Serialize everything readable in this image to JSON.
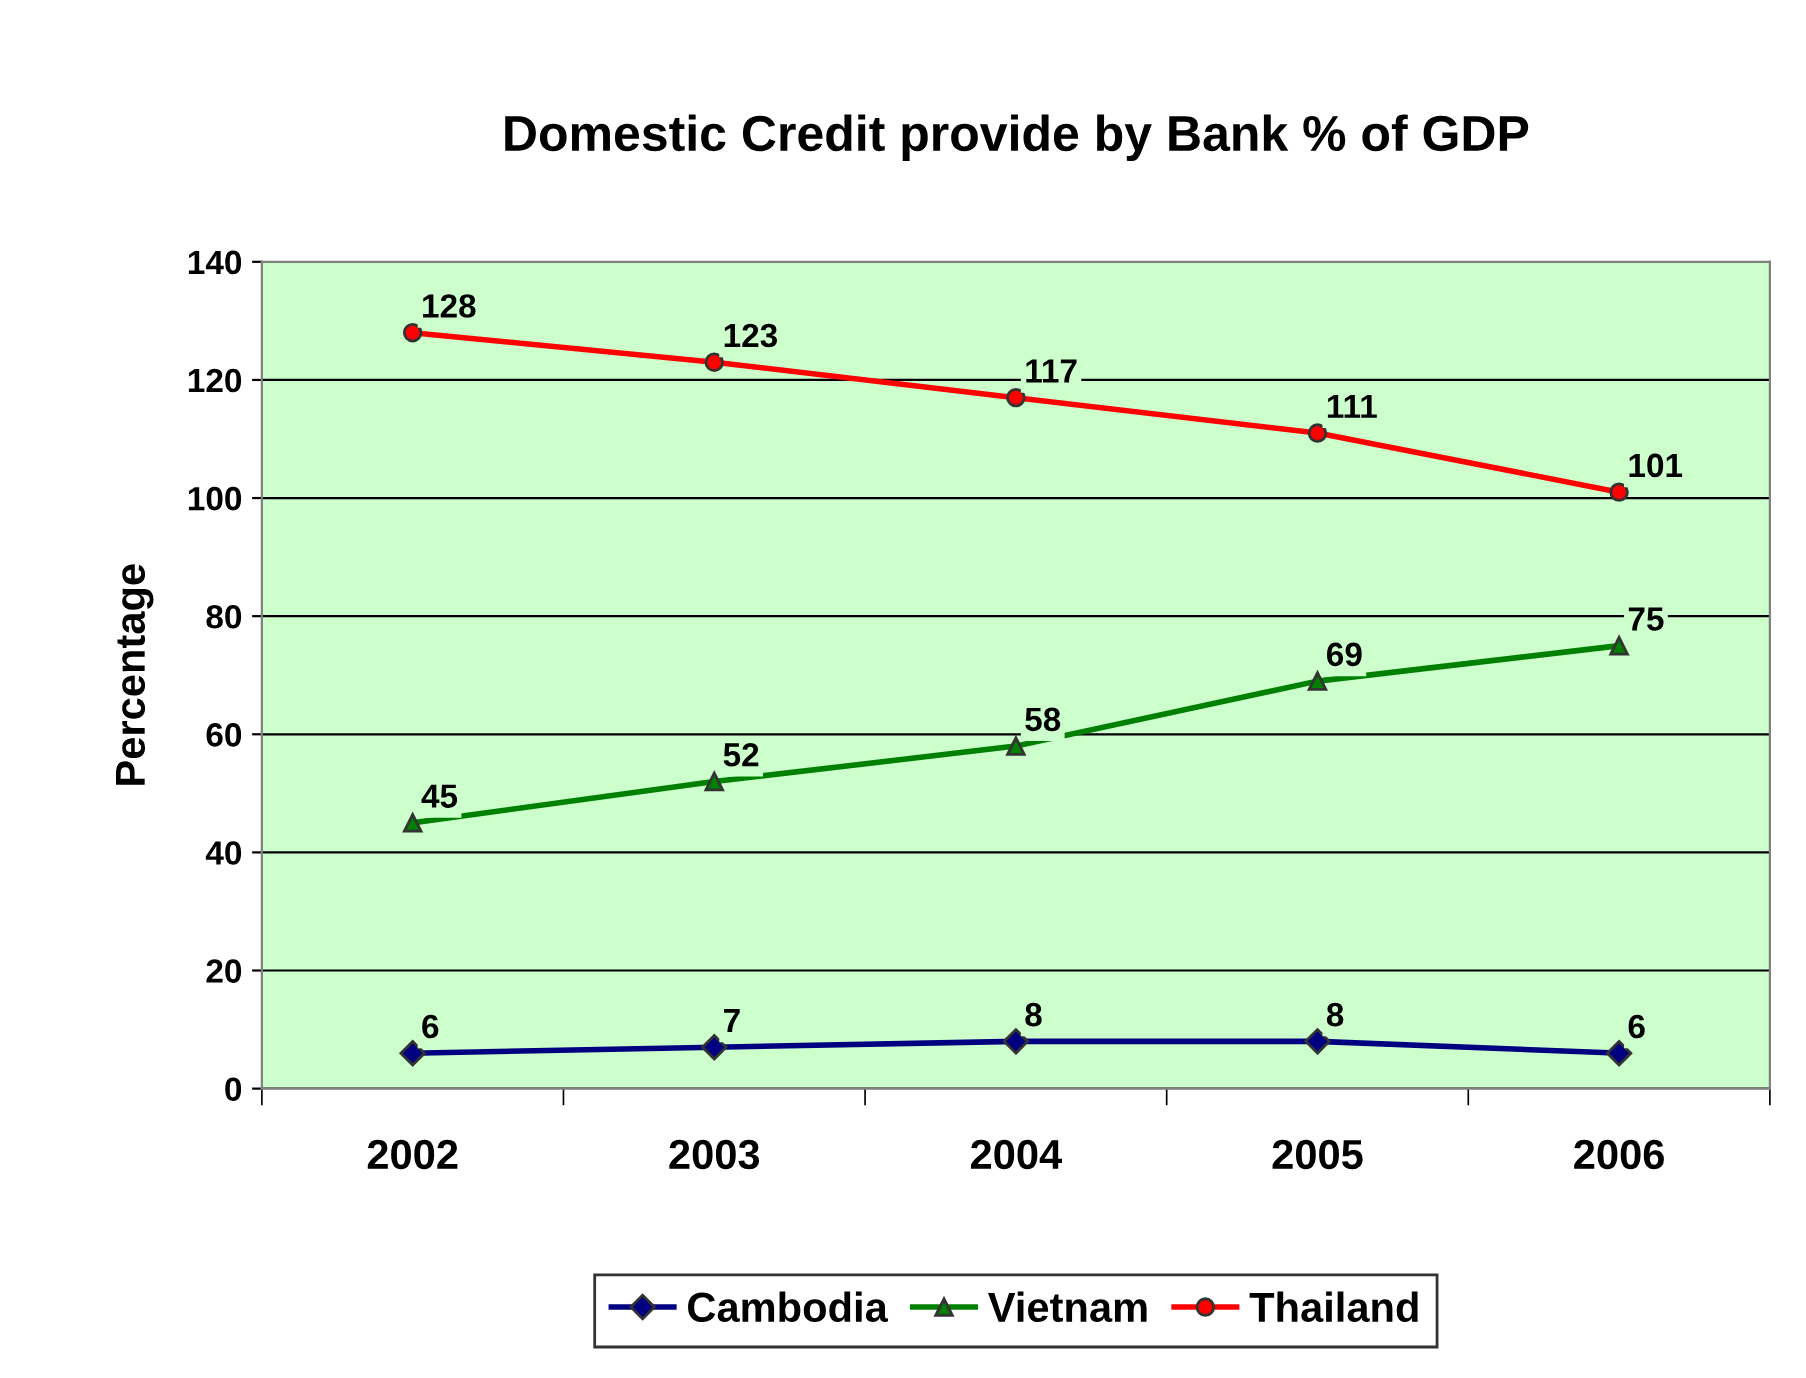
{
  "chart_data": {
    "type": "line",
    "title": "Domestic Credit provide by Bank % of GDP",
    "ylabel": "Percentage",
    "categories": [
      "2002",
      "2003",
      "2004",
      "2005",
      "2006"
    ],
    "series": [
      {
        "name": "Cambodia",
        "color": "#000080",
        "marker": "diamond",
        "values": [
          6,
          7,
          8,
          8,
          6
        ]
      },
      {
        "name": "Vietnam",
        "color": "#008000",
        "marker": "triangle",
        "values": [
          45,
          52,
          58,
          69,
          75
        ]
      },
      {
        "name": "Thailand",
        "color": "#ff0000",
        "marker": "circle",
        "values": [
          128,
          123,
          117,
          111,
          101
        ]
      }
    ],
    "ylim": [
      0,
      140
    ],
    "yticks": [
      0,
      20,
      40,
      60,
      80,
      100,
      120,
      140
    ],
    "grid": "y",
    "legend": "bottom",
    "data_labels": true
  }
}
